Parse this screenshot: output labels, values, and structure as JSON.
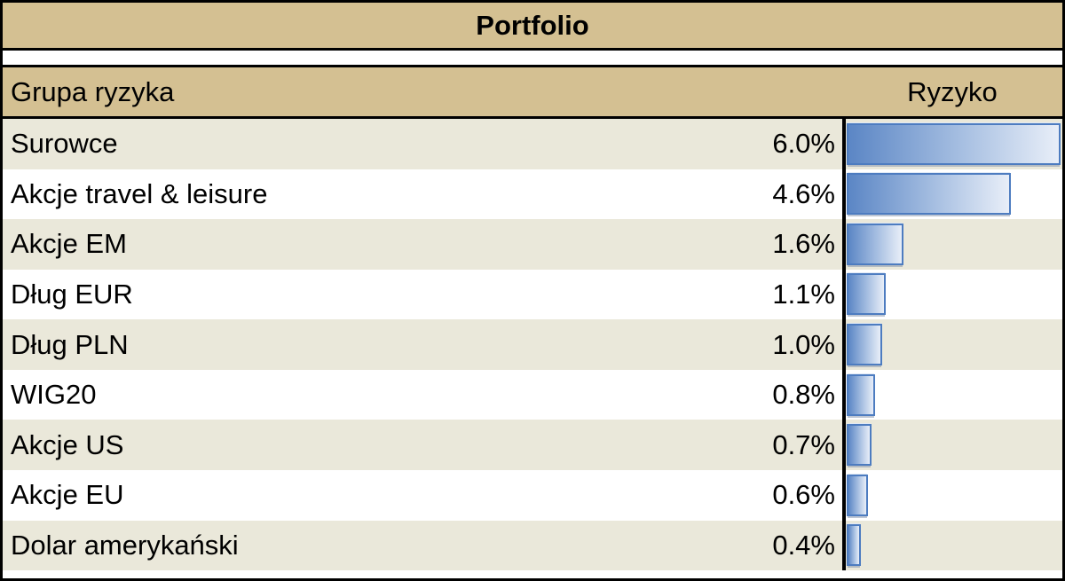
{
  "title": "Portfolio",
  "table": {
    "header": {
      "group": "Grupa ryzyka",
      "risk": "Ryzyko"
    },
    "max_pct": 6.0,
    "rows": [
      {
        "label": "Surowce",
        "value": "6.0%",
        "pct": 6.0
      },
      {
        "label": "Akcje travel & leisure",
        "value": "4.6%",
        "pct": 4.6
      },
      {
        "label": "Akcje EM",
        "value": "1.6%",
        "pct": 1.6
      },
      {
        "label": "Dług EUR",
        "value": "1.1%",
        "pct": 1.1
      },
      {
        "label": "Dług PLN",
        "value": "1.0%",
        "pct": 1.0
      },
      {
        "label": "WIG20",
        "value": "0.8%",
        "pct": 0.8
      },
      {
        "label": "Akcje US",
        "value": "0.7%",
        "pct": 0.7
      },
      {
        "label": "Akcje EU",
        "value": "0.6%",
        "pct": 0.6
      },
      {
        "label": "Dolar amerykański",
        "value": "0.4%",
        "pct": 0.4
      }
    ]
  },
  "chart_data": {
    "type": "bar",
    "orientation": "horizontal",
    "title": "Portfolio",
    "column_headers": [
      "Grupa ryzyka",
      "Ryzyko"
    ],
    "categories": [
      "Surowce",
      "Akcje travel & leisure",
      "Akcje EM",
      "Dług EUR",
      "Dług PLN",
      "WIG20",
      "Akcje US",
      "Akcje EU",
      "Dolar amerykański"
    ],
    "values": [
      6.0,
      4.6,
      1.6,
      1.1,
      1.0,
      0.8,
      0.7,
      0.6,
      0.4
    ],
    "value_labels": [
      "6.0%",
      "4.6%",
      "1.6%",
      "1.1%",
      "1.0%",
      "0.8%",
      "0.7%",
      "0.6%",
      "0.4%"
    ],
    "units": "%",
    "xlabel": "",
    "ylabel": "",
    "xlim": [
      0,
      6.0
    ],
    "grid": false,
    "legend": false,
    "bar_style": "gradient-data-bar"
  },
  "colors": {
    "band_tan": "#d4c092",
    "row_cream": "#eae8da",
    "row_white": "#ffffff",
    "border_black": "#000000",
    "bar_fill_start": "#5b86c5",
    "bar_fill_end": "#e8eef8",
    "bar_border": "#4d7cc0",
    "text": "#000000"
  }
}
